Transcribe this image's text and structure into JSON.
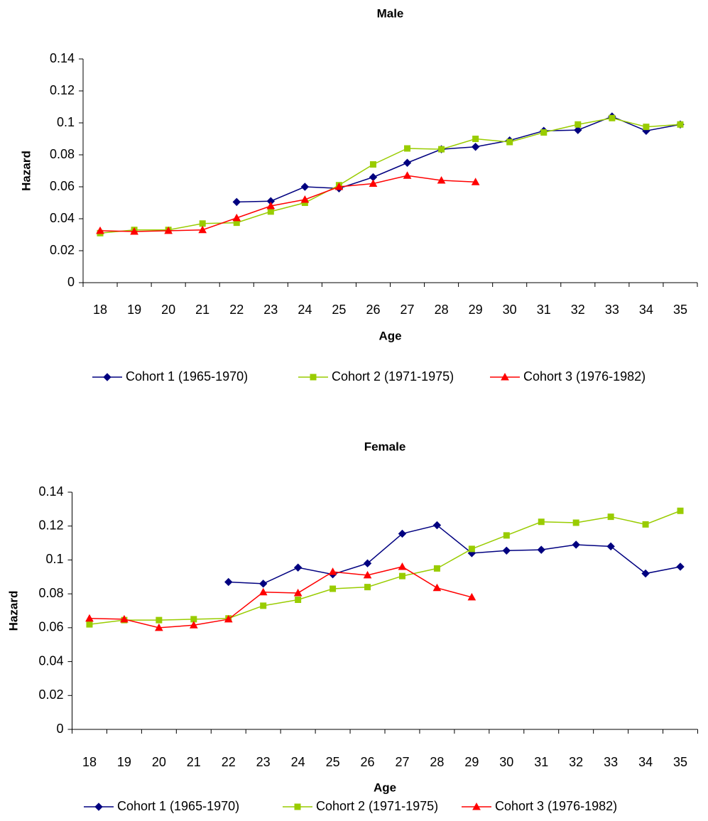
{
  "chart_data": [
    {
      "type": "line",
      "title": "Male",
      "x_label": "Age",
      "y_label": "Hazard",
      "categories": [
        "18",
        "19",
        "20",
        "21",
        "22",
        "23",
        "24",
        "25",
        "26",
        "27",
        "28",
        "29",
        "30",
        "31",
        "32",
        "33",
        "34",
        "35"
      ],
      "ylim": [
        0,
        0.14
      ],
      "yticks": [
        0,
        0.02,
        0.04,
        0.06,
        0.08,
        0.1,
        0.12,
        0.14
      ],
      "series": [
        {
          "name": "Cohort 1 (1965-1970)",
          "color": "#000080",
          "marker": "diamond",
          "values": [
            null,
            null,
            null,
            null,
            0.0505,
            0.051,
            0.06,
            0.059,
            0.066,
            0.075,
            0.0835,
            0.085,
            0.089,
            0.095,
            0.0955,
            0.104,
            0.095,
            0.099
          ]
        },
        {
          "name": "Cohort 2 (1971-1975)",
          "color": "#99cc00",
          "marker": "square",
          "values": [
            0.031,
            0.033,
            0.033,
            0.037,
            0.0375,
            0.0445,
            0.05,
            0.061,
            0.074,
            0.084,
            0.0835,
            0.09,
            0.088,
            0.094,
            0.099,
            0.103,
            0.0975,
            0.099
          ]
        },
        {
          "name": "Cohort 3 (1976-1982)",
          "color": "#ff0000",
          "marker": "triangle",
          "values": [
            0.0325,
            0.032,
            0.0325,
            0.033,
            0.0405,
            0.048,
            0.052,
            0.06,
            0.062,
            0.067,
            0.064,
            0.063,
            null,
            null,
            null,
            null,
            null,
            null
          ]
        }
      ]
    },
    {
      "type": "line",
      "title": "Female",
      "x_label": "Age",
      "y_label": "Hazard",
      "categories": [
        "18",
        "19",
        "20",
        "21",
        "22",
        "23",
        "24",
        "25",
        "26",
        "27",
        "28",
        "29",
        "30",
        "31",
        "32",
        "33",
        "34",
        "35"
      ],
      "ylim": [
        0,
        0.14
      ],
      "yticks": [
        0,
        0.02,
        0.04,
        0.06,
        0.08,
        0.1,
        0.12,
        0.14
      ],
      "series": [
        {
          "name": "Cohort 1 (1965-1970)",
          "color": "#000080",
          "marker": "diamond",
          "values": [
            null,
            null,
            null,
            null,
            0.087,
            0.086,
            0.0955,
            0.0915,
            0.098,
            0.1155,
            0.1205,
            0.104,
            0.1055,
            0.106,
            0.109,
            0.108,
            0.092,
            0.096
          ]
        },
        {
          "name": "Cohort 2 (1971-1975)",
          "color": "#99cc00",
          "marker": "square",
          "values": [
            0.062,
            0.0645,
            0.0645,
            0.065,
            0.0655,
            0.073,
            0.0765,
            0.083,
            0.084,
            0.0905,
            0.095,
            0.1065,
            0.1145,
            0.1225,
            0.122,
            0.1255,
            0.121,
            0.129
          ]
        },
        {
          "name": "Cohort 3 (1976-1982)",
          "color": "#ff0000",
          "marker": "triangle",
          "values": [
            0.0655,
            0.065,
            0.06,
            0.0615,
            0.065,
            0.081,
            0.0805,
            0.093,
            0.091,
            0.096,
            0.0835,
            0.078,
            null,
            null,
            null,
            null,
            null,
            null
          ]
        }
      ]
    }
  ]
}
